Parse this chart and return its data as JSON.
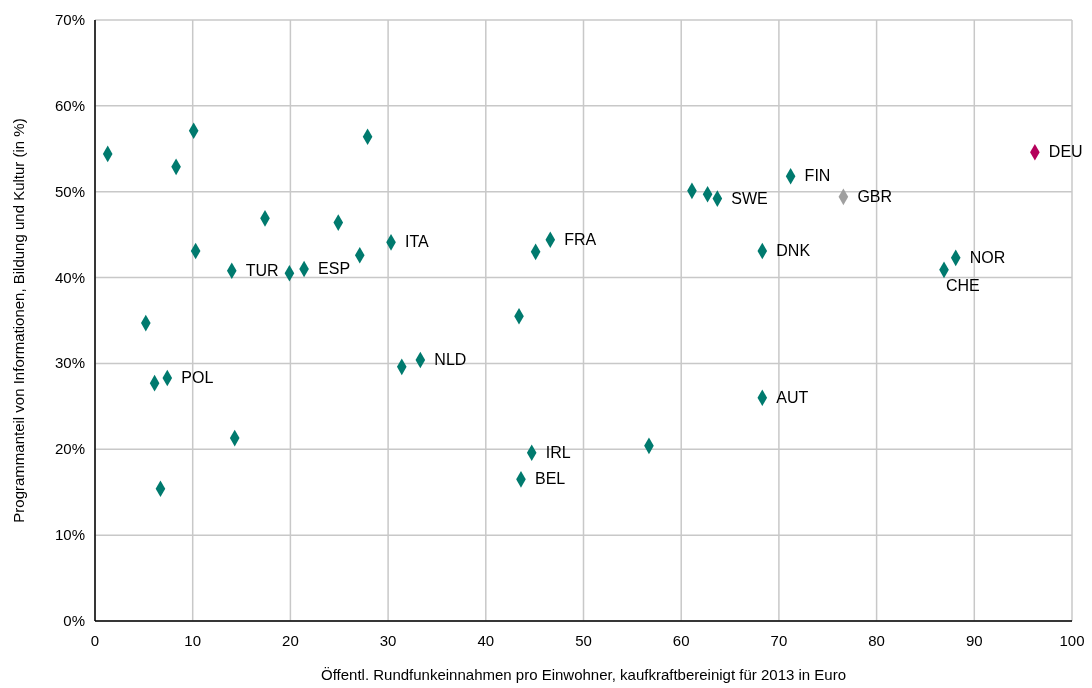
{
  "chart_data": {
    "type": "scatter",
    "xlabel": "Öffentl. Rundfunkeinnahmen pro Einwohner, kaufkraftbereinigt für 2013 in Euro",
    "ylabel": "Programmanteil von Informationen, Bildung und Kultur (in %)",
    "x": [
      1.3,
      10.1,
      8.3,
      27.9,
      17.4,
      24.9,
      10.3,
      30.3,
      27.1,
      14.0,
      19.9,
      21.4,
      5.2,
      6.1,
      7.4,
      14.3,
      6.7,
      31.4,
      33.3,
      46.6,
      45.1,
      43.4,
      44.7,
      43.6,
      56.7,
      61.1,
      62.7,
      63.7,
      71.2,
      76.6,
      96.2,
      68.3,
      88.1,
      86.9,
      68.3
    ],
    "values": [
      54.4,
      57.1,
      52.9,
      56.4,
      46.9,
      46.4,
      43.1,
      44.1,
      42.6,
      40.8,
      40.5,
      41.0,
      34.7,
      27.7,
      28.3,
      21.3,
      15.4,
      29.6,
      30.4,
      44.4,
      43.0,
      35.5,
      19.6,
      16.5,
      20.4,
      50.1,
      49.7,
      49.2,
      51.8,
      49.4,
      54.6,
      43.1,
      42.3,
      40.9,
      26.0
    ],
    "colors": [
      "#007a6e",
      "#007a6e",
      "#007a6e",
      "#007a6e",
      "#007a6e",
      "#007a6e",
      "#007a6e",
      "#007a6e",
      "#007a6e",
      "#007a6e",
      "#007a6e",
      "#007a6e",
      "#007a6e",
      "#007a6e",
      "#007a6e",
      "#007a6e",
      "#007a6e",
      "#007a6e",
      "#007a6e",
      "#007a6e",
      "#007a6e",
      "#007a6e",
      "#007a6e",
      "#007a6e",
      "#007a6e",
      "#007a6e",
      "#007a6e",
      "#007a6e",
      "#007a6e",
      "#a0a0a0",
      "#b5005b",
      "#007a6e",
      "#007a6e",
      "#007a6e",
      "#007a6e"
    ],
    "annotations": [
      {
        "text": "ITA",
        "x": 30.3,
        "y": 44.1
      },
      {
        "text": "TUR",
        "x": 14.0,
        "y": 40.8
      },
      {
        "text": "ESP",
        "x": 21.4,
        "y": 41.0
      },
      {
        "text": "POL",
        "x": 7.4,
        "y": 28.3
      },
      {
        "text": "NLD",
        "x": 33.3,
        "y": 30.4
      },
      {
        "text": "FRA",
        "x": 46.6,
        "y": 44.4
      },
      {
        "text": "IRL",
        "x": 44.7,
        "y": 19.6
      },
      {
        "text": "BEL",
        "x": 43.6,
        "y": 16.5
      },
      {
        "text": "SWE",
        "x": 63.7,
        "y": 49.2
      },
      {
        "text": "FIN",
        "x": 71.2,
        "y": 51.8
      },
      {
        "text": "GBR",
        "x": 76.6,
        "y": 49.4
      },
      {
        "text": "DEU",
        "x": 96.2,
        "y": 54.6
      },
      {
        "text": "DNK",
        "x": 68.3,
        "y": 43.1
      },
      {
        "text": "NOR",
        "x": 88.1,
        "y": 42.3
      },
      {
        "text": "CHE",
        "x": 86.9,
        "y": 40.9
      },
      {
        "text": "AUT",
        "x": 68.3,
        "y": 26.0
      }
    ],
    "xlim": [
      0,
      100
    ],
    "xticks": [
      0,
      10,
      20,
      30,
      40,
      50,
      60,
      70,
      80,
      90,
      100
    ],
    "ylim": [
      0,
      70
    ],
    "yticks": [
      {
        "value": 0,
        "label": "0%"
      },
      {
        "value": 10,
        "label": "10%"
      },
      {
        "value": 20,
        "label": "20%"
      },
      {
        "value": 30,
        "label": "30%"
      },
      {
        "value": 40,
        "label": "40%"
      },
      {
        "value": 50,
        "label": "50%"
      },
      {
        "value": 60,
        "label": "60%"
      },
      {
        "value": 70,
        "label": "70%"
      }
    ],
    "grid": true,
    "marker": "diamond"
  }
}
